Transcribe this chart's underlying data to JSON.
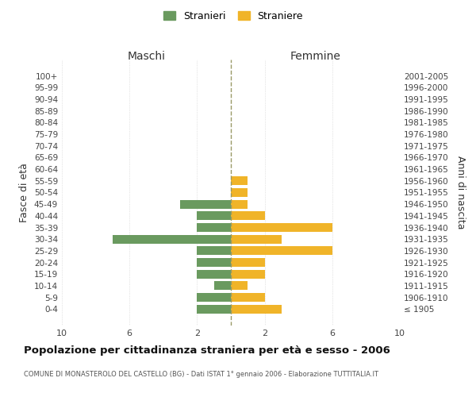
{
  "age_groups": [
    "100+",
    "95-99",
    "90-94",
    "85-89",
    "80-84",
    "75-79",
    "70-74",
    "65-69",
    "60-64",
    "55-59",
    "50-54",
    "45-49",
    "40-44",
    "35-39",
    "30-34",
    "25-29",
    "20-24",
    "15-19",
    "10-14",
    "5-9",
    "0-4"
  ],
  "birth_years": [
    "≤ 1905",
    "1906-1910",
    "1911-1915",
    "1916-1920",
    "1921-1925",
    "1926-1930",
    "1931-1935",
    "1936-1940",
    "1941-1945",
    "1946-1950",
    "1951-1955",
    "1956-1960",
    "1961-1965",
    "1966-1970",
    "1971-1975",
    "1976-1980",
    "1981-1985",
    "1986-1990",
    "1991-1995",
    "1996-2000",
    "2001-2005"
  ],
  "maschi": [
    0,
    0,
    0,
    0,
    0,
    0,
    0,
    0,
    0,
    0,
    0,
    3,
    2,
    2,
    7,
    2,
    2,
    2,
    1,
    2,
    2
  ],
  "femmine": [
    0,
    0,
    0,
    0,
    0,
    0,
    0,
    0,
    0,
    1,
    1,
    1,
    2,
    6,
    3,
    6,
    2,
    2,
    1,
    2,
    3
  ],
  "color_maschi": "#6a9a5f",
  "color_femmine": "#f0b429",
  "background_color": "#ffffff",
  "grid_color": "#cccccc",
  "dashed_line_color": "#999966",
  "title": "Popolazione per cittadinanza straniera per età e sesso - 2006",
  "subtitle": "COMUNE DI MONASTEROLO DEL CASTELLO (BG) - Dati ISTAT 1° gennaio 2006 - Elaborazione TUTTITALIA.IT",
  "legend_stranieri": "Stranieri",
  "legend_straniere": "Straniere",
  "xlabel_left": "Maschi",
  "xlabel_right": "Femmine",
  "ylabel_left": "Fasce di età",
  "ylabel_right": "Anni di nascita",
  "xlim": 10
}
